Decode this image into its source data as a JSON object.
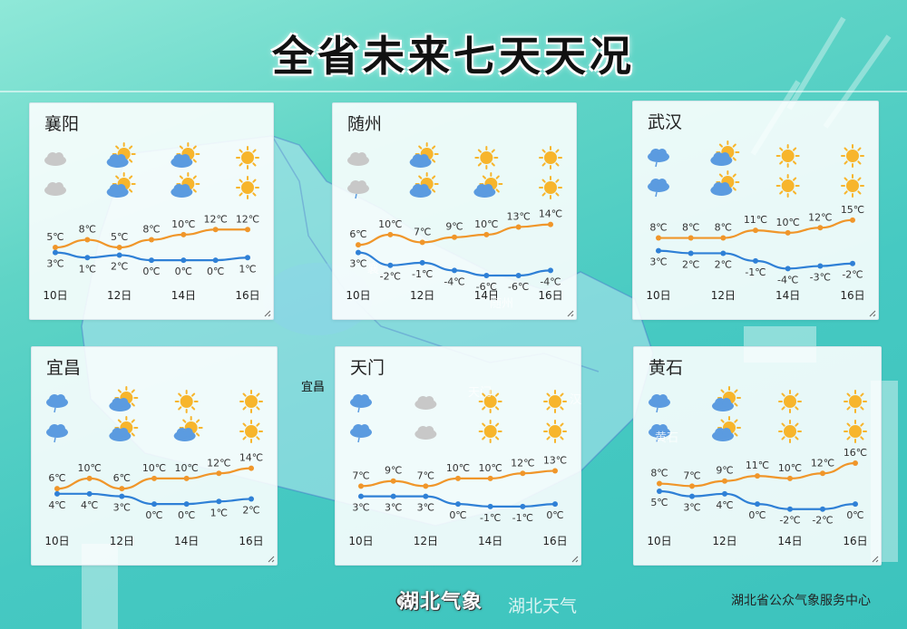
{
  "page": {
    "title": "全省未来七天天况",
    "source": "湖北省公众气象服务中心",
    "logo_text": "湖北气象",
    "watermark": "湖北天气",
    "map_labels": [
      "宜昌"
    ],
    "map_ghost_labels": [
      "襄",
      "随州",
      "天门",
      "汉",
      "黄石"
    ]
  },
  "colors": {
    "high_line": "#f0962a",
    "low_line": "#2f80d6",
    "sun": "#f7b52c",
    "cloud_grey": "#c8c8c8",
    "cloud_blue": "#5b9be0"
  },
  "chart_data": [
    {
      "type": "line",
      "city": "襄阳",
      "icon_columns": [
        0,
        2,
        4,
        6
      ],
      "icons_day": [
        "cloudy",
        "partly-cloudy",
        "partly-cloudy",
        "sunny"
      ],
      "icons_night": [
        "cloudy",
        "partly-cloudy",
        "partly-cloudy",
        "sunny"
      ],
      "x": [
        "10日",
        "11日",
        "12日",
        "13日",
        "14日",
        "15日",
        "16日"
      ],
      "x_tick_labels": [
        "10日",
        "12日",
        "14日",
        "16日"
      ],
      "series": [
        {
          "values": [
            5,
            8,
            5,
            8,
            10,
            12,
            12
          ],
          "labels": [
            "5℃",
            "8℃",
            "5℃",
            "8℃",
            "10℃",
            "12℃",
            "12℃"
          ]
        },
        {
          "values": [
            3,
            1,
            2,
            0,
            0,
            0,
            1
          ],
          "labels": [
            "3℃",
            "1℃",
            "2℃",
            "0℃",
            "0℃",
            "0℃",
            "1℃"
          ]
        }
      ]
    },
    {
      "type": "line",
      "city": "随州",
      "icon_columns": [
        0,
        2,
        4,
        6
      ],
      "icons_day": [
        "cloudy",
        "partly-cloudy",
        "sunny",
        "sunny"
      ],
      "icons_night": [
        "cloudy-rain",
        "partly-cloudy",
        "partly-cloudy",
        "sunny"
      ],
      "x": [
        "10日",
        "11日",
        "12日",
        "13日",
        "14日",
        "15日",
        "16日"
      ],
      "x_tick_labels": [
        "10日",
        "12日",
        "14日",
        "16日"
      ],
      "series": [
        {
          "values": [
            6,
            10,
            7,
            9,
            10,
            13,
            14
          ],
          "labels": [
            "6℃",
            "10℃",
            "7℃",
            "9℃",
            "10℃",
            "13℃",
            "14℃"
          ]
        },
        {
          "values": [
            3,
            -2,
            -1,
            -4,
            -6,
            -6,
            -4
          ],
          "labels": [
            "3℃",
            "-2℃",
            "-1℃",
            "-4℃",
            "-6℃",
            "-6℃",
            "-4℃"
          ]
        }
      ]
    },
    {
      "type": "line",
      "city": "武汉",
      "icon_columns": [
        0,
        2,
        4,
        6
      ],
      "icons_day": [
        "rain",
        "partly-cloudy",
        "sunny",
        "sunny"
      ],
      "icons_night": [
        "rain",
        "partly-cloudy",
        "sunny",
        "sunny"
      ],
      "x": [
        "10日",
        "11日",
        "12日",
        "13日",
        "14日",
        "15日",
        "16日"
      ],
      "x_tick_labels": [
        "10日",
        "12日",
        "14日",
        "16日"
      ],
      "series": [
        {
          "values": [
            8,
            8,
            8,
            11,
            10,
            12,
            15
          ],
          "labels": [
            "8℃",
            "8℃",
            "8℃",
            "11℃",
            "10℃",
            "12℃",
            "15℃"
          ]
        },
        {
          "values": [
            3,
            2,
            2,
            -1,
            -4,
            -3,
            -2
          ],
          "labels": [
            "3℃",
            "2℃",
            "2℃",
            "-1℃",
            "-4℃",
            "-3℃",
            "-2℃"
          ]
        }
      ]
    },
    {
      "type": "line",
      "city": "宜昌",
      "icon_columns": [
        0,
        2,
        4,
        6
      ],
      "icons_day": [
        "rain",
        "partly-cloudy",
        "sunny",
        "sunny"
      ],
      "icons_night": [
        "rain",
        "partly-cloudy",
        "partly-cloudy",
        "sunny"
      ],
      "x": [
        "10日",
        "11日",
        "12日",
        "13日",
        "14日",
        "15日",
        "16日"
      ],
      "x_tick_labels": [
        "10日",
        "12日",
        "14日",
        "16日"
      ],
      "series": [
        {
          "values": [
            6,
            10,
            6,
            10,
            10,
            12,
            14
          ],
          "labels": [
            "6℃",
            "10℃",
            "6℃",
            "10℃",
            "10℃",
            "12℃",
            "14℃"
          ]
        },
        {
          "values": [
            4,
            4,
            3,
            0,
            0,
            1,
            2
          ],
          "labels": [
            "4℃",
            "4℃",
            "3℃",
            "0℃",
            "0℃",
            "1℃",
            "2℃"
          ]
        }
      ]
    },
    {
      "type": "line",
      "city": "天门",
      "icon_columns": [
        0,
        2,
        4,
        6
      ],
      "icons_day": [
        "rain",
        "cloudy",
        "sunny",
        "sunny"
      ],
      "icons_night": [
        "rain",
        "cloudy",
        "sunny",
        "sunny"
      ],
      "x": [
        "10日",
        "11日",
        "12日",
        "13日",
        "14日",
        "15日",
        "16日"
      ],
      "x_tick_labels": [
        "10日",
        "12日",
        "14日",
        "16日"
      ],
      "series": [
        {
          "values": [
            7,
            9,
            7,
            10,
            10,
            12,
            13
          ],
          "labels": [
            "7℃",
            "9℃",
            "7℃",
            "10℃",
            "10℃",
            "12℃",
            "13℃"
          ]
        },
        {
          "values": [
            3,
            3,
            3,
            0,
            -1,
            -1,
            0
          ],
          "labels": [
            "3℃",
            "3℃",
            "3℃",
            "0℃",
            "-1℃",
            "-1℃",
            "0℃"
          ]
        }
      ]
    },
    {
      "type": "line",
      "city": "黄石",
      "icon_columns": [
        0,
        2,
        4,
        6
      ],
      "icons_day": [
        "rain",
        "partly-cloudy",
        "sunny",
        "sunny"
      ],
      "icons_night": [
        "rain",
        "partly-cloudy",
        "sunny",
        "sunny"
      ],
      "x": [
        "10日",
        "11日",
        "12日",
        "13日",
        "14日",
        "15日",
        "16日"
      ],
      "x_tick_labels": [
        "10日",
        "12日",
        "14日",
        "16日"
      ],
      "series": [
        {
          "values": [
            8,
            7,
            9,
            11,
            10,
            12,
            16
          ],
          "labels": [
            "8℃",
            "7℃",
            "9℃",
            "11℃",
            "10℃",
            "12℃",
            "16℃"
          ]
        },
        {
          "values": [
            5,
            3,
            4,
            0,
            -2,
            -2,
            0
          ],
          "labels": [
            "5℃",
            "3℃",
            "4℃",
            "0℃",
            "-2℃",
            "-2℃",
            "0℃"
          ]
        }
      ]
    }
  ]
}
